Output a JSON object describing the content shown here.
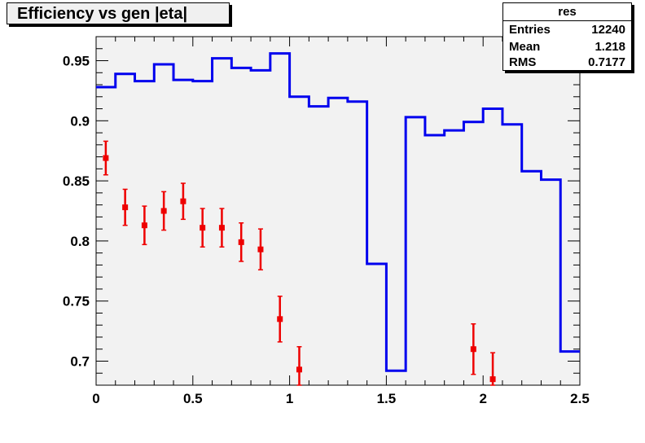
{
  "title": "Efficiency vs gen |eta|",
  "stats": {
    "name": "res",
    "rows": [
      {
        "label": "Entries",
        "value": "12240"
      },
      {
        "label": "Mean",
        "value": "1.218"
      },
      {
        "label": "RMS",
        "value": "0.7177"
      }
    ]
  },
  "chart_data": {
    "type": "line",
    "xlim": [
      0,
      2.5
    ],
    "ylim": [
      0.68,
      0.97
    ],
    "x_ticks": [
      "0",
      "0.5",
      "1",
      "1.5",
      "2",
      "2.5"
    ],
    "y_ticks": [
      "0.7",
      "0.75",
      "0.8",
      "0.85",
      "0.9",
      "0.95"
    ],
    "grid": false,
    "series": [
      {
        "style": "step-histogram",
        "color": "#0000ee",
        "bin_edges": [
          0,
          0.1,
          0.2,
          0.3,
          0.4,
          0.5,
          0.6,
          0.7,
          0.8,
          0.9,
          1.0,
          1.1,
          1.2,
          1.3,
          1.4,
          1.5,
          1.6,
          1.7,
          1.8,
          1.9,
          2.0,
          2.1,
          2.2,
          2.3,
          2.4,
          2.5
        ],
        "values": [
          0.928,
          0.939,
          0.933,
          0.947,
          0.934,
          0.933,
          0.952,
          0.944,
          0.942,
          0.956,
          0.92,
          0.912,
          0.919,
          0.916,
          0.781,
          0.692,
          0.903,
          0.888,
          0.892,
          0.899,
          0.91,
          0.897,
          0.858,
          0.851,
          0.708
        ]
      },
      {
        "style": "markers-with-errors",
        "color": "#ee0000",
        "x": [
          0.05,
          0.15,
          0.25,
          0.35,
          0.45,
          0.55,
          0.65,
          0.75,
          0.85,
          0.95,
          1.05,
          1.95,
          2.05
        ],
        "y": [
          0.869,
          0.828,
          0.813,
          0.825,
          0.833,
          0.811,
          0.811,
          0.799,
          0.793,
          0.735,
          0.693,
          0.71,
          0.685
        ],
        "err": [
          0.014,
          0.015,
          0.016,
          0.016,
          0.015,
          0.016,
          0.016,
          0.016,
          0.017,
          0.019,
          0.019,
          0.021,
          0.022
        ]
      }
    ]
  }
}
